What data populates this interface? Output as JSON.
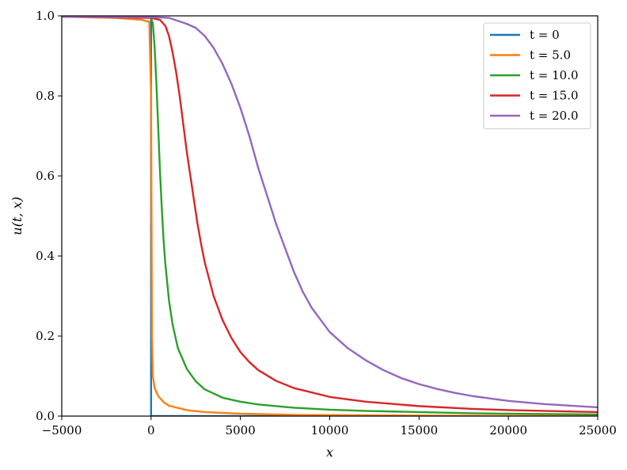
{
  "chart_data": {
    "type": "line",
    "xlabel": "x",
    "ylabel": "u(t, x)",
    "xlim": [
      -5000,
      25000
    ],
    "ylim": [
      0.0,
      1.0
    ],
    "xticks": [
      -5000,
      0,
      5000,
      10000,
      15000,
      20000,
      25000
    ],
    "xtick_labels": [
      "−5000",
      "0",
      "5000",
      "10000",
      "15000",
      "20000",
      "25000"
    ],
    "yticks": [
      0.0,
      0.2,
      0.4,
      0.6,
      0.8,
      1.0
    ],
    "ytick_labels": [
      "0.0",
      "0.2",
      "0.4",
      "0.6",
      "0.8",
      "1.0"
    ],
    "grid": false,
    "legend_position": "top-right",
    "series": [
      {
        "name": "t = 0",
        "color": "#1f77b4",
        "x": [
          -5000,
          -0.01,
          0,
          0.01,
          25000
        ],
        "y": [
          1.0,
          1.0,
          0.5,
          0.0,
          0.0
        ]
      },
      {
        "name": "t = 5.0",
        "color": "#ff7f0e",
        "x": [
          -5000,
          -2000,
          -500,
          -100,
          0,
          50,
          100,
          200,
          400,
          700,
          1000,
          2000,
          3000,
          5000,
          8000,
          12000,
          16000,
          20000,
          25000
        ],
        "y": [
          0.998,
          0.995,
          0.99,
          0.985,
          0.8,
          0.2,
          0.1,
          0.07,
          0.05,
          0.035,
          0.026,
          0.015,
          0.01,
          0.006,
          0.003,
          0.002,
          0.001,
          0.0005,
          0.0002
        ]
      },
      {
        "name": "t = 10.0",
        "color": "#2ca02c",
        "x": [
          -5000,
          -1000,
          0,
          100,
          200,
          300,
          400,
          500,
          600,
          700,
          800,
          1000,
          1200,
          1500,
          2000,
          2500,
          3000,
          4000,
          5000,
          6000,
          8000,
          10000,
          12000,
          15000,
          18000,
          20000,
          25000
        ],
        "y": [
          0.998,
          0.997,
          0.995,
          0.98,
          0.92,
          0.83,
          0.72,
          0.61,
          0.52,
          0.44,
          0.38,
          0.29,
          0.23,
          0.17,
          0.118,
          0.087,
          0.067,
          0.046,
          0.036,
          0.029,
          0.021,
          0.016,
          0.013,
          0.01,
          0.007,
          0.006,
          0.004
        ]
      },
      {
        "name": "t = 15.0",
        "color": "#d62728",
        "x": [
          -5000,
          0,
          500,
          800,
          1000,
          1200,
          1400,
          1600,
          1800,
          2000,
          2200,
          2400,
          2600,
          2800,
          3000,
          3500,
          4000,
          4500,
          5000,
          5500,
          6000,
          7000,
          8000,
          10000,
          12000,
          15000,
          18000,
          20000,
          25000
        ],
        "y": [
          0.998,
          0.995,
          0.99,
          0.975,
          0.95,
          0.91,
          0.86,
          0.8,
          0.73,
          0.66,
          0.6,
          0.54,
          0.48,
          0.43,
          0.385,
          0.3,
          0.24,
          0.195,
          0.16,
          0.135,
          0.115,
          0.088,
          0.07,
          0.048,
          0.036,
          0.025,
          0.018,
          0.015,
          0.01
        ]
      },
      {
        "name": "t = 20.0",
        "color": "#9467bd",
        "x": [
          -5000,
          0,
          1000,
          2000,
          2500,
          3000,
          3500,
          4000,
          4500,
          5000,
          5500,
          6000,
          6500,
          7000,
          7500,
          8000,
          8500,
          9000,
          9500,
          10000,
          11000,
          12000,
          13000,
          14000,
          15000,
          16000,
          17000,
          18000,
          19000,
          20000,
          22000,
          25000
        ],
        "y": [
          0.998,
          0.997,
          0.995,
          0.98,
          0.97,
          0.95,
          0.92,
          0.88,
          0.83,
          0.77,
          0.7,
          0.62,
          0.55,
          0.48,
          0.42,
          0.36,
          0.31,
          0.27,
          0.24,
          0.21,
          0.17,
          0.14,
          0.115,
          0.095,
          0.08,
          0.068,
          0.058,
          0.05,
          0.044,
          0.038,
          0.03,
          0.022
        ]
      }
    ]
  }
}
